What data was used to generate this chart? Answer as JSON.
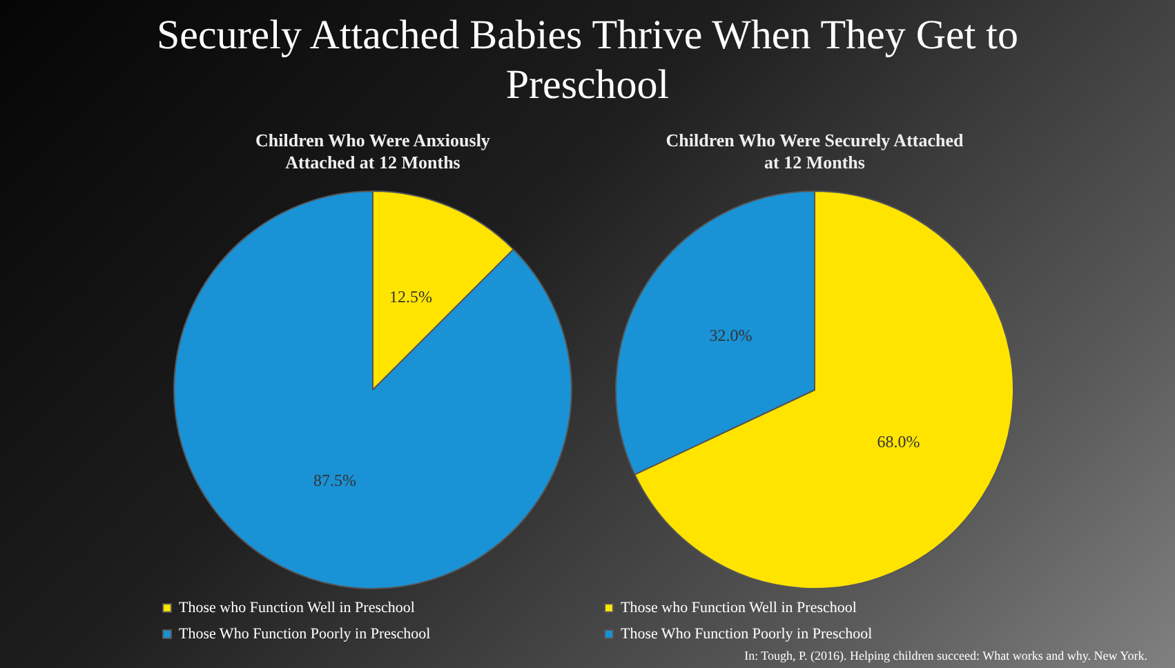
{
  "chart_data": [
    {
      "type": "other",
      "title": "Securely Attached Babies Thrive When They Get to Preschool",
      "annotations": [
        "In: Tough, P. (2016). Helping children succeed: What works and why. New York."
      ]
    },
    {
      "type": "pie",
      "title": "Children Who Were Anxiously Attached at 12 Months",
      "categories": [
        "Those who Function Well in Preschool",
        "Those Who Function Poorly in Preschool"
      ],
      "values": [
        12.5,
        87.5
      ],
      "colors": [
        "#ffe400",
        "#1a92d6"
      ],
      "value_labels": [
        "12.5%",
        "87.5%"
      ],
      "legend": "bottom"
    },
    {
      "type": "pie",
      "title": "Children Who Were Securely Attached at 12 Months",
      "categories": [
        "Those who Function Well in Preschool",
        "Those Who Function Poorly in Preschool"
      ],
      "values": [
        68.0,
        32.0
      ],
      "colors": [
        "#ffe400",
        "#1a92d6"
      ],
      "value_labels": [
        "68.0%",
        "32.0%"
      ],
      "legend": "bottom"
    }
  ]
}
